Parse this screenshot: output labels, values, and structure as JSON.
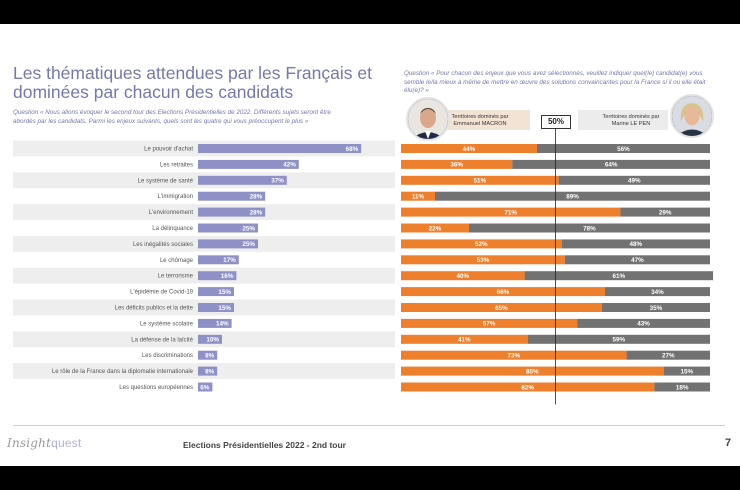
{
  "title_lines": [
    "Les thématiques attendues par les Français et",
    "dominées par chacun des candidats"
  ],
  "question_left": "Question « Nous allons évoquer le second tour des Elections Présidentielles de 2022. Différents sujets seront être abordés par les candidats. Parmi les enjeux suivants, quels sont les quatre qui vous préoccupent le plus »",
  "question_right": "Question « Pour chacun des enjeux que vous avez sélectionnés, veuillez indiquer quel(le) candidat(e) vous semble le/la mieux à même de mettre en œuvre des solutions convaincantes pour la France si il ou elle était élu(e)? »",
  "header": {
    "left_label": "Territoires dominés par Emmanuel MACRON",
    "right_label": "Territoires dominés par Marine LE PEN",
    "center_label": "50%"
  },
  "colors": {
    "purple": "#8f91c6",
    "orange": "#ee7f2d",
    "gray": "#727272",
    "stripe": "#eeeeee"
  },
  "footer": {
    "brand_prefix": "Insight",
    "brand_suffix": "quest",
    "title": "Elections Présidentielles 2022 - 2nd tour",
    "page": "7"
  },
  "chart_data": [
    {
      "type": "bar",
      "orientation": "horizontal",
      "title": "Thématiques attendues",
      "categories": [
        "Le pouvoir d'achat",
        "Les retraites",
        "Le système de santé",
        "L'immigration",
        "L'environnement",
        "La délinquance",
        "Les inégalités sociales",
        "Le chômage",
        "Le terrorisme",
        "L'épidémie de Covid-19",
        "Les déficits publics et la dette",
        "Le système scolaire",
        "La défense de la laïcité",
        "Les discriminations",
        "Le rôle de la France dans la diplomatie internationale",
        "Les questions européennes"
      ],
      "values": [
        68,
        42,
        37,
        28,
        28,
        25,
        25,
        17,
        16,
        15,
        15,
        14,
        10,
        8,
        8,
        6
      ],
      "labels": [
        "68%",
        "42%",
        "37%",
        "28%",
        "28%",
        "25%",
        "25%",
        "17%",
        "16%",
        "15%",
        "15%",
        "14%",
        "10%",
        "8%",
        "8%",
        "6%"
      ],
      "xlim": [
        0,
        100
      ]
    },
    {
      "type": "bar",
      "stacked": true,
      "orientation": "horizontal",
      "categories": [
        "Le pouvoir d'achat",
        "Les retraites",
        "Le système de santé",
        "L'immigration",
        "L'environnement",
        "La délinquance",
        "Les inégalités sociales",
        "Le chômage",
        "Le terrorisme",
        "L'épidémie de Covid-19",
        "Les déficits publics et la dette",
        "Le système scolaire",
        "La défense de la laïcité",
        "Les discriminations",
        "Le rôle de la France dans la diplomatie internationale",
        "Les questions européennes"
      ],
      "series": [
        {
          "name": "Emmanuel MACRON",
          "values": [
            44,
            36,
            51,
            11,
            71,
            22,
            52,
            53,
            40,
            66,
            65,
            57,
            41,
            73,
            85,
            82
          ],
          "labels": [
            "44%",
            "36%",
            "51%",
            "11%",
            "71%",
            "22%",
            "52%",
            "53%",
            "40%",
            "66%",
            "65%",
            "57%",
            "41%",
            "73%",
            "85%",
            "82%"
          ]
        },
        {
          "name": "Marine LE PEN",
          "values": [
            56,
            64,
            49,
            89,
            29,
            78,
            48,
            47,
            61,
            34,
            35,
            43,
            59,
            27,
            15,
            18
          ],
          "labels": [
            "56%",
            "64%",
            "49%",
            "89%",
            "29%",
            "78%",
            "48%",
            "47%",
            "61%",
            "34%",
            "35%",
            "43%",
            "59%",
            "27%",
            "15%",
            "18%"
          ]
        }
      ],
      "reference_line": 50,
      "xlim": [
        0,
        100
      ]
    }
  ]
}
